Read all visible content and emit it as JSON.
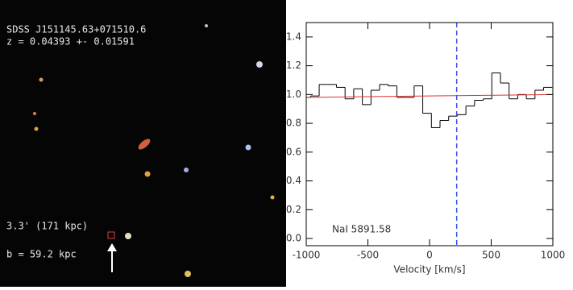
{
  "image": {
    "object_name": "SDSS J151145.63+071510.6",
    "redshift": "z = 0.04393 +- 0.01591",
    "scale_note": "3.3' (171 kpc)",
    "impact_parameter": "b = 59.2 kpc"
  },
  "chart_data": {
    "type": "step",
    "xlabel": "Velocity [km/s]",
    "annotation": "NaI 5891.58",
    "xlim": [
      -1000,
      1000
    ],
    "ylim": [
      -0.05,
      1.5
    ],
    "xticks": [
      -1000,
      -500,
      0,
      500,
      1000
    ],
    "yticks": [
      {
        "value": 0,
        "label": "0.0"
      },
      {
        "value": 0.2,
        "label": "0.2"
      },
      {
        "value": 0.4,
        "label": "0.4"
      },
      {
        "value": 0.6,
        "label": "0.6"
      },
      {
        "value": 0.8,
        "label": "0.8"
      },
      {
        "value": 1,
        "label": "1.0"
      },
      {
        "value": 1.2,
        "label": "1.2"
      },
      {
        "value": 1.4,
        "label": "1.4"
      }
    ],
    "series": [
      {
        "color": "#000000",
        "x": [
          -1000,
          -930,
          -860,
          -790,
          -720,
          -650,
          -580,
          -510,
          -440,
          -370,
          -300,
          -230,
          -160,
          -90,
          -20,
          50,
          120,
          190,
          260,
          330,
          400,
          470,
          540,
          610,
          680,
          750,
          820,
          890,
          960
        ],
        "values": [
          0.98,
          0.99,
          1.07,
          1.07,
          1.05,
          0.97,
          1.04,
          0.93,
          1.03,
          1.07,
          1.06,
          0.98,
          0.98,
          1.06,
          0.87,
          0.77,
          0.82,
          0.85,
          0.86,
          0.92,
          0.96,
          0.97,
          1.15,
          1.08,
          0.97,
          1.0,
          0.97,
          1.03,
          1.05
        ]
      },
      {
        "color": "#e03030",
        "x": [
          -1000,
          1000
        ],
        "values": [
          0.98,
          1.0
        ]
      }
    ],
    "vline": {
      "value": 220,
      "color": "#3050f0"
    }
  }
}
